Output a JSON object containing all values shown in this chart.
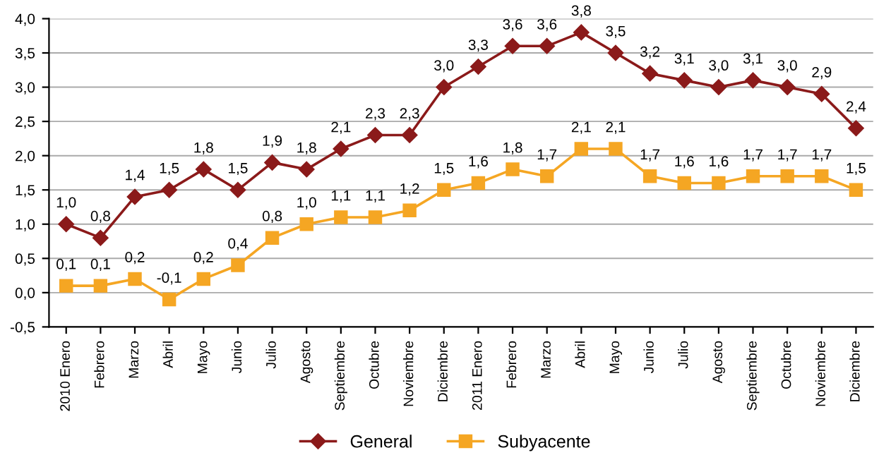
{
  "chart_data": {
    "type": "line",
    "categories": [
      "2010 Enero",
      "Febrero",
      "Marzo",
      "Abril",
      "Mayo",
      "Junio",
      "Julio",
      "Agosto",
      "Septiembre",
      "Octubre",
      "Noviembre",
      "Diciembre",
      "2011 Enero",
      "Febrero",
      "Marzo",
      "Abril",
      "Mayo",
      "Junio",
      "Julio",
      "Agosto",
      "Septiembre",
      "Octubre",
      "Noviembre",
      "Diciembre"
    ],
    "series": [
      {
        "name": "General",
        "color": "#8b1a1a",
        "marker": "diamond",
        "values": [
          1.0,
          0.8,
          1.4,
          1.5,
          1.8,
          1.5,
          1.9,
          1.8,
          2.1,
          2.3,
          2.3,
          3.0,
          3.3,
          3.6,
          3.6,
          3.8,
          3.5,
          3.2,
          3.1,
          3.0,
          3.1,
          3.0,
          2.9,
          2.4
        ],
        "value_labels": [
          "1,0",
          "0,8",
          "1,4",
          "1,5",
          "1,8",
          "1,5",
          "1,9",
          "1,8",
          "2,1",
          "2,3",
          "2,3",
          "3,0",
          "3,3",
          "3,6",
          "3,6",
          "3,8",
          "3,5",
          "3,2",
          "3,1",
          "3,0",
          "3,1",
          "3,0",
          "2,9",
          "2,4"
        ]
      },
      {
        "name": "Subyacente",
        "color": "#f5a623",
        "marker": "square",
        "values": [
          0.1,
          0.1,
          0.2,
          -0.1,
          0.2,
          0.4,
          0.8,
          1.0,
          1.1,
          1.1,
          1.2,
          1.5,
          1.6,
          1.8,
          1.7,
          2.1,
          2.1,
          1.7,
          1.6,
          1.6,
          1.7,
          1.7,
          1.7,
          1.5
        ],
        "value_labels": [
          "0,1",
          "0,1",
          "0,2",
          "-0,1",
          "0,2",
          "0,4",
          "0,8",
          "1,0",
          "1,1",
          "1,1",
          "1,2",
          "1,5",
          "1,6",
          "1,8",
          "1,7",
          "2,1",
          "2,1",
          "1,7",
          "1,6",
          "1,6",
          "1,7",
          "1,7",
          "1,7",
          "1,5"
        ]
      }
    ],
    "ylim": [
      -0.5,
      4.0
    ],
    "yticks": [
      {
        "value": -0.5,
        "label": "-0,5"
      },
      {
        "value": 0.0,
        "label": "0,0"
      },
      {
        "value": 0.5,
        "label": "0,5"
      },
      {
        "value": 1.0,
        "label": "1,0"
      },
      {
        "value": 1.5,
        "label": "1,5"
      },
      {
        "value": 2.0,
        "label": "2,0"
      },
      {
        "value": 2.5,
        "label": "2,5"
      },
      {
        "value": 3.0,
        "label": "3,0"
      },
      {
        "value": 3.5,
        "label": "3,5"
      },
      {
        "value": 4.0,
        "label": "4,0"
      }
    ],
    "grid": "y",
    "legend": "bottom",
    "line_style": "solid"
  }
}
